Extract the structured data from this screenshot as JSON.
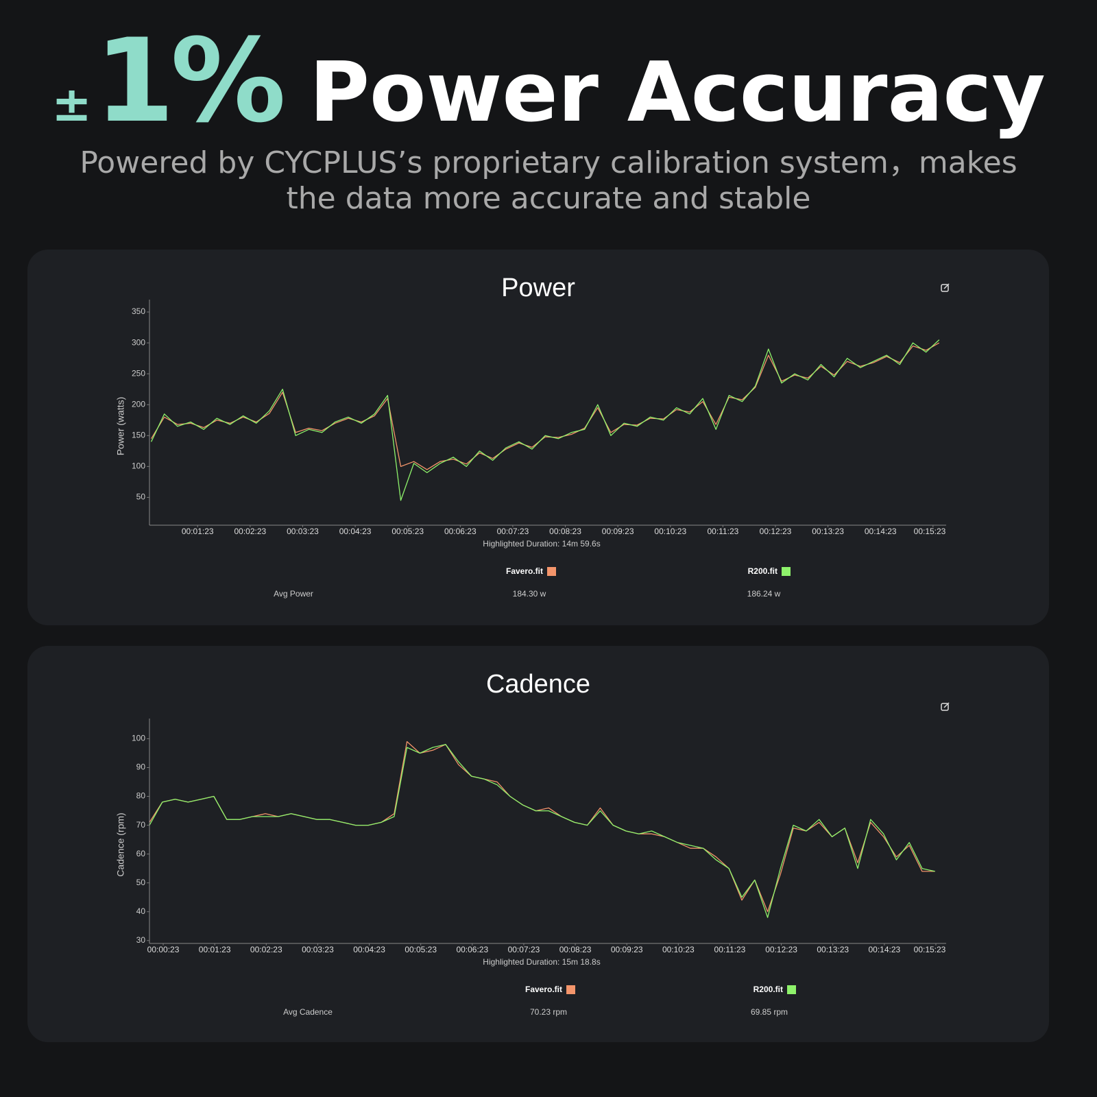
{
  "header": {
    "plusminus": "±",
    "accent": "1%",
    "title": "Power Accuracy",
    "subtitle": "Powered by CYCPLUS’s proprietary calibration system，makes the data more accurate and stable"
  },
  "chart_data": [
    {
      "type": "line",
      "title": "Power",
      "ylabel": "Power (watts)",
      "xlabel": "Highlighted Duration: 14m 59.6s",
      "x": [
        30,
        45,
        60,
        75,
        90,
        105,
        120,
        135,
        150,
        165,
        180,
        195,
        210,
        225,
        240,
        255,
        270,
        285,
        300,
        315,
        330,
        345,
        360,
        375,
        390,
        405,
        420,
        435,
        450,
        465,
        480,
        495,
        510,
        525,
        540,
        555,
        570,
        585,
        600,
        615,
        630,
        645,
        660,
        675,
        690,
        705,
        720,
        735,
        750,
        765,
        780,
        795,
        810,
        825,
        840,
        855,
        870,
        885,
        900,
        915,
        930
      ],
      "series": [
        {
          "name": "Favero.fit",
          "color": "#f4956b",
          "values": [
            145,
            180,
            168,
            170,
            163,
            175,
            170,
            180,
            172,
            186,
            220,
            155,
            162,
            158,
            170,
            178,
            172,
            182,
            210,
            100,
            108,
            95,
            108,
            112,
            104,
            122,
            113,
            128,
            138,
            131,
            148,
            147,
            152,
            162,
            195,
            155,
            168,
            167,
            178,
            177,
            192,
            188,
            205,
            168,
            212,
            208,
            228,
            280,
            238,
            248,
            243,
            262,
            248,
            270,
            262,
            268,
            278,
            268,
            295,
            288,
            300
          ]
        },
        {
          "name": "R200.fit",
          "color": "#8ef26b",
          "values": [
            140,
            185,
            165,
            172,
            160,
            178,
            168,
            182,
            170,
            190,
            225,
            150,
            160,
            155,
            172,
            180,
            170,
            185,
            215,
            45,
            105,
            90,
            105,
            115,
            100,
            125,
            110,
            130,
            140,
            128,
            150,
            145,
            155,
            160,
            200,
            150,
            170,
            165,
            180,
            175,
            195,
            185,
            210,
            160,
            215,
            205,
            230,
            290,
            235,
            250,
            240,
            265,
            245,
            275,
            260,
            270,
            280,
            265,
            300,
            285,
            305
          ]
        }
      ],
      "xlim": [
        28,
        938
      ],
      "ylim": [
        5,
        370
      ],
      "xticks": [
        {
          "value": 83,
          "label": "00:01:23"
        },
        {
          "value": 143,
          "label": "00:02:23"
        },
        {
          "value": 203,
          "label": "00:03:23"
        },
        {
          "value": 263,
          "label": "00:04:23"
        },
        {
          "value": 323,
          "label": "00:05:23"
        },
        {
          "value": 383,
          "label": "00:06:23"
        },
        {
          "value": 443,
          "label": "00:07:23"
        },
        {
          "value": 503,
          "label": "00:08:23"
        },
        {
          "value": 563,
          "label": "00:09:23"
        },
        {
          "value": 623,
          "label": "00:10:23"
        },
        {
          "value": 683,
          "label": "00:11:23"
        },
        {
          "value": 743,
          "label": "00:12:23"
        },
        {
          "value": 803,
          "label": "00:13:23"
        },
        {
          "value": 863,
          "label": "00:14:23"
        },
        {
          "value": 923,
          "label": "00:15:23"
        }
      ],
      "yticks": [
        50,
        100,
        150,
        200,
        250,
        300,
        350
      ],
      "stats": {
        "label": "Avg Power",
        "values": [
          "184.30 w",
          "186.24 w"
        ]
      }
    },
    {
      "type": "line",
      "title": "Cadence",
      "ylabel": "Cadence (rpm)",
      "xlabel": "Highlighted Duration: 15m 18.8s",
      "x": [
        7,
        22,
        37,
        52,
        67,
        82,
        97,
        112,
        127,
        142,
        157,
        172,
        187,
        202,
        217,
        232,
        247,
        262,
        277,
        292,
        307,
        322,
        337,
        352,
        367,
        382,
        397,
        412,
        427,
        442,
        457,
        472,
        487,
        502,
        517,
        532,
        547,
        562,
        577,
        592,
        607,
        622,
        637,
        652,
        667,
        682,
        697,
        712,
        727,
        742,
        757,
        772,
        787,
        802,
        817,
        832,
        847,
        862,
        877,
        892,
        907,
        922
      ],
      "series": [
        {
          "name": "Favero.fit",
          "color": "#f4956b",
          "values": [
            71,
            78,
            79,
            78,
            79,
            80,
            72,
            72,
            73,
            74,
            73,
            74,
            73,
            72,
            72,
            71,
            70,
            70,
            71,
            74,
            99,
            95,
            96,
            98,
            91,
            87,
            86,
            85,
            80,
            77,
            75,
            76,
            73,
            71,
            70,
            76,
            70,
            68,
            67,
            67,
            66,
            64,
            62,
            62,
            59,
            55,
            44,
            51,
            40,
            53,
            69,
            68,
            71,
            66,
            69,
            57,
            71,
            66,
            59,
            63,
            54,
            54
          ]
        },
        {
          "name": "R200.fit",
          "color": "#8ef26b",
          "values": [
            70,
            78,
            79,
            78,
            79,
            80,
            72,
            72,
            73,
            73,
            73,
            74,
            73,
            72,
            72,
            71,
            70,
            70,
            71,
            73,
            97,
            95,
            97,
            98,
            92,
            87,
            86,
            84,
            80,
            77,
            75,
            75,
            73,
            71,
            70,
            75,
            70,
            68,
            67,
            68,
            66,
            64,
            63,
            62,
            58,
            55,
            45,
            51,
            38,
            55,
            70,
            68,
            72,
            66,
            69,
            55,
            72,
            67,
            58,
            64,
            55,
            54
          ]
        }
      ],
      "xlim": [
        7,
        935
      ],
      "ylim": [
        29,
        107
      ],
      "xticks": [
        {
          "value": 23,
          "label": "00:00:23"
        },
        {
          "value": 83,
          "label": "00:01:23"
        },
        {
          "value": 143,
          "label": "00:02:23"
        },
        {
          "value": 203,
          "label": "00:03:23"
        },
        {
          "value": 263,
          "label": "00:04:23"
        },
        {
          "value": 323,
          "label": "00:05:23"
        },
        {
          "value": 383,
          "label": "00:06:23"
        },
        {
          "value": 443,
          "label": "00:07:23"
        },
        {
          "value": 503,
          "label": "00:08:23"
        },
        {
          "value": 563,
          "label": "00:09:23"
        },
        {
          "value": 623,
          "label": "00:10:23"
        },
        {
          "value": 683,
          "label": "00:11:23"
        },
        {
          "value": 743,
          "label": "00:12:23"
        },
        {
          "value": 803,
          "label": "00:13:23"
        },
        {
          "value": 863,
          "label": "00:14:23"
        },
        {
          "value": 923,
          "label": "00:15:23"
        }
      ],
      "yticks": [
        30,
        40,
        50,
        60,
        70,
        80,
        90,
        100
      ],
      "stats": {
        "label": "Avg Cadence",
        "values": [
          "70.23 rpm",
          "69.85 rpm"
        ]
      }
    }
  ]
}
